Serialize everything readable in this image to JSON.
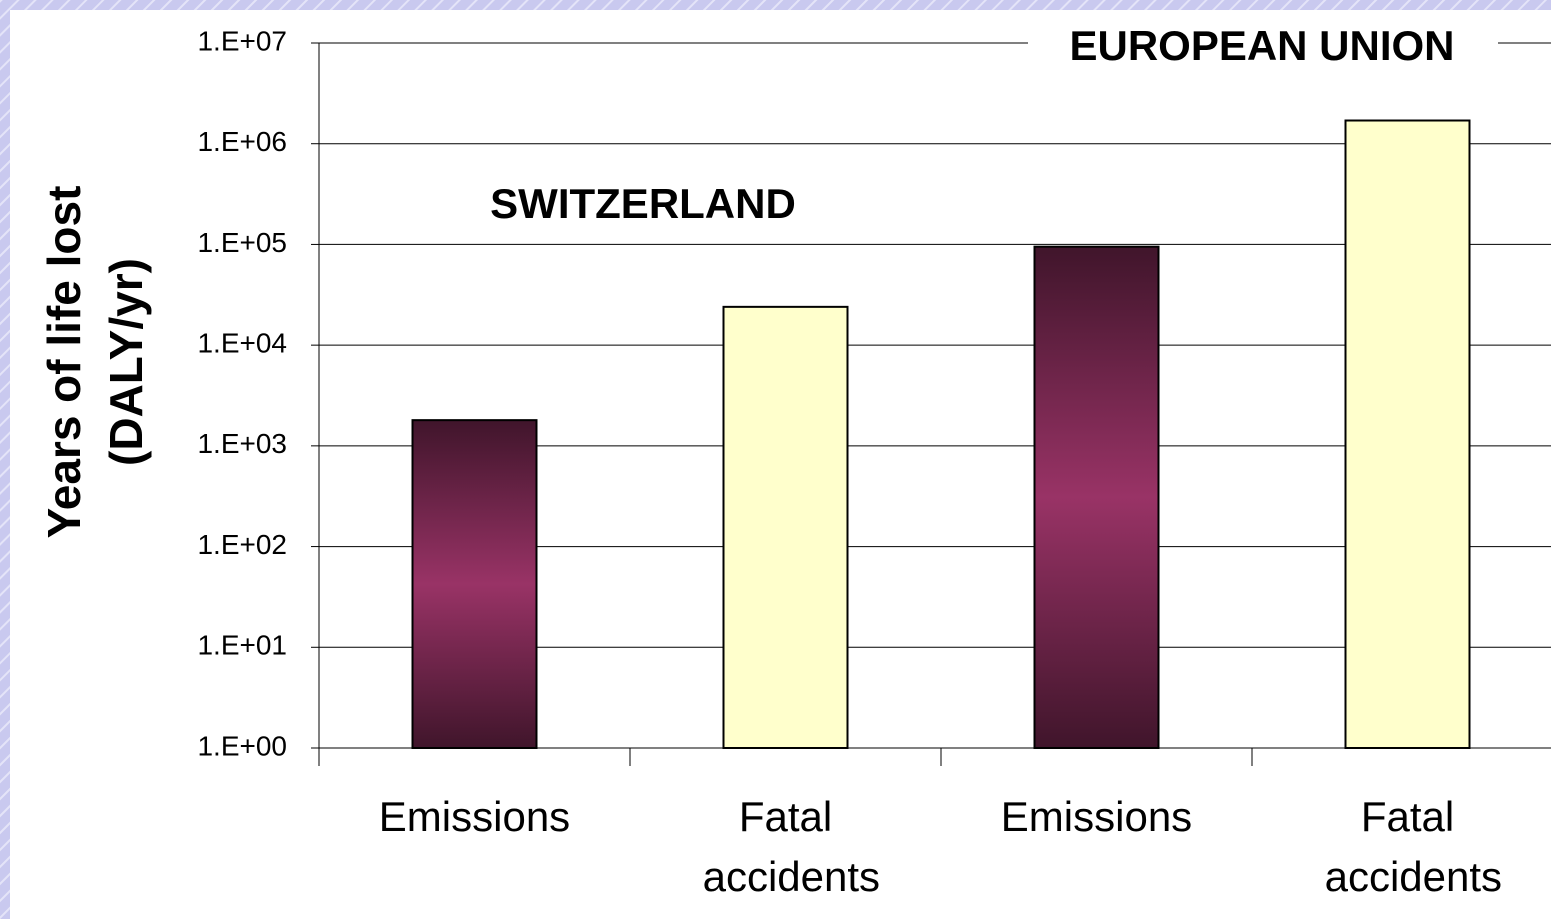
{
  "chart_data": {
    "type": "bar",
    "y_label": [
      "Years of life lost",
      "(DALY/yr)"
    ],
    "annotations": [
      "SWITZERLAND",
      "EUROPEAN UNION"
    ],
    "categories": [
      "Emissions",
      "Fatal accidents",
      "Emissions",
      "Fatal accidents"
    ],
    "values": [
      1800,
      24000,
      95000,
      1700000
    ],
    "colors": [
      "#993366",
      "#ffffcc",
      "#993366",
      "#ffffcc"
    ],
    "log_scale": true,
    "ylim": [
      1,
      10000000
    ],
    "yticks": [
      {
        "value": 1,
        "label": "1.E+00"
      },
      {
        "value": 10,
        "label": "1.E+01"
      },
      {
        "value": 100,
        "label": "1.E+02"
      },
      {
        "value": 1000,
        "label": "1.E+03"
      },
      {
        "value": 10000,
        "label": "1.E+04"
      },
      {
        "value": 100000,
        "label": "1.E+05"
      },
      {
        "value": 1000000,
        "label": "1.E+06"
      },
      {
        "value": 10000000,
        "label": "1.E+07"
      }
    ],
    "grid": true
  }
}
